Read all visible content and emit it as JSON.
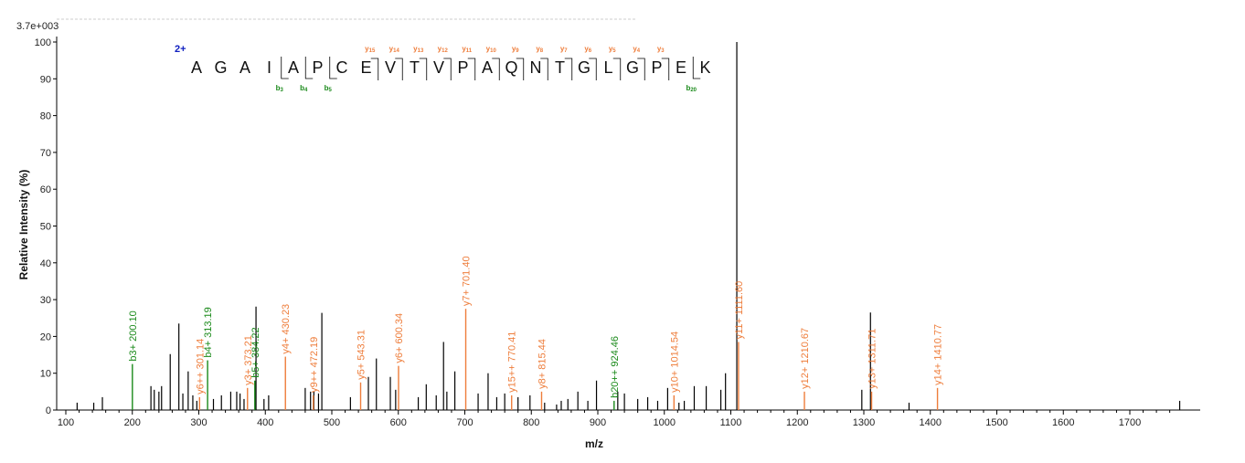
{
  "chart_data": {
    "type": "bar",
    "scale_label": "3.7e+003",
    "xlabel": "m/z",
    "ylabel": "Relative   Intensity (%)",
    "xlim": [
      90,
      1790
    ],
    "ylim": [
      0,
      100
    ],
    "x_ticks": [
      100,
      200,
      300,
      400,
      500,
      600,
      700,
      800,
      900,
      1000,
      1100,
      1200,
      1300,
      1400,
      1500,
      1600,
      1700
    ],
    "y_ticks": [
      0,
      10,
      20,
      30,
      40,
      50,
      60,
      70,
      80,
      90,
      100
    ],
    "colors": {
      "b_ion": "#1a8a1a",
      "y_ion": "#ee7d3b",
      "unassigned": "#000000",
      "charge": "#1020c0"
    },
    "annotated_peaks": [
      {
        "mz": 200.1,
        "intensity": 12.5,
        "label": "b3+ 200.10",
        "type": "b"
      },
      {
        "mz": 301.14,
        "intensity": 3.5,
        "label": "y6++ 301.14",
        "type": "y"
      },
      {
        "mz": 313.19,
        "intensity": 13.5,
        "label": "b4+ 313.19",
        "type": "b"
      },
      {
        "mz": 373.21,
        "intensity": 6.0,
        "label": "y3+ 373.21",
        "type": "y"
      },
      {
        "mz": 384.22,
        "intensity": 8.0,
        "label": "b5+ 384.22",
        "type": "b"
      },
      {
        "mz": 430.23,
        "intensity": 14.5,
        "label": "y4+ 430.23",
        "type": "y"
      },
      {
        "mz": 472.19,
        "intensity": 4.0,
        "label": "y9++ 472.19",
        "type": "y"
      },
      {
        "mz": 543.31,
        "intensity": 7.5,
        "label": "y5+ 543.31",
        "type": "y"
      },
      {
        "mz": 600.34,
        "intensity": 12.0,
        "label": "y6+ 600.34",
        "type": "y"
      },
      {
        "mz": 701.4,
        "intensity": 27.5,
        "label": "y7+ 701.40",
        "type": "y"
      },
      {
        "mz": 770.41,
        "intensity": 4.0,
        "label": "y15++ 770.41",
        "type": "y"
      },
      {
        "mz": 815.44,
        "intensity": 5.0,
        "label": "y8+ 815.44",
        "type": "y"
      },
      {
        "mz": 924.46,
        "intensity": 2.5,
        "label": "b20++ 924.46",
        "type": "b"
      },
      {
        "mz": 1014.54,
        "intensity": 4.0,
        "label": "y10+ 1014.54",
        "type": "y"
      },
      {
        "mz": 1111.6,
        "intensity": 18.5,
        "label": "y11+ 1111.60",
        "type": "y"
      },
      {
        "mz": 1210.67,
        "intensity": 5.0,
        "label": "y12+ 1210.67",
        "type": "y"
      },
      {
        "mz": 1311.71,
        "intensity": 5.0,
        "label": "y13+ 1311.71",
        "type": "y"
      },
      {
        "mz": 1410.77,
        "intensity": 6.0,
        "label": "y14+ 1410.77",
        "type": "y"
      }
    ],
    "unassigned_peaks": [
      [
        117,
        2
      ],
      [
        142,
        2
      ],
      [
        155,
        3.5
      ],
      [
        228,
        6.5
      ],
      [
        233,
        5.5
      ],
      [
        240,
        5
      ],
      [
        244,
        6.5
      ],
      [
        257,
        15.2
      ],
      [
        270,
        23.5
      ],
      [
        276,
        4.5
      ],
      [
        284,
        10.5
      ],
      [
        291,
        4
      ],
      [
        297,
        2.5
      ],
      [
        322,
        3
      ],
      [
        334,
        4
      ],
      [
        348,
        5
      ],
      [
        357,
        5
      ],
      [
        362,
        4.5
      ],
      [
        368,
        3
      ],
      [
        386,
        28.1
      ],
      [
        398,
        3
      ],
      [
        405,
        4
      ],
      [
        460,
        6
      ],
      [
        468,
        5
      ],
      [
        473,
        5
      ],
      [
        480,
        4.5
      ],
      [
        485,
        26.4
      ],
      [
        528,
        3.5
      ],
      [
        555,
        9
      ],
      [
        567,
        14
      ],
      [
        588,
        9
      ],
      [
        596,
        5.5
      ],
      [
        630,
        3.5
      ],
      [
        642,
        7
      ],
      [
        657,
        4
      ],
      [
        668,
        18.5
      ],
      [
        673,
        5
      ],
      [
        685,
        10.5
      ],
      [
        720,
        4.5
      ],
      [
        735,
        10
      ],
      [
        748,
        3.5
      ],
      [
        760,
        4.5
      ],
      [
        780,
        3.5
      ],
      [
        798,
        4
      ],
      [
        820,
        2
      ],
      [
        838,
        1.5
      ],
      [
        845,
        2.5
      ],
      [
        855,
        3
      ],
      [
        870,
        5
      ],
      [
        885,
        2.5
      ],
      [
        898,
        8
      ],
      [
        930,
        5
      ],
      [
        940,
        4.5
      ],
      [
        960,
        3
      ],
      [
        975,
        3.5
      ],
      [
        990,
        2.5
      ],
      [
        1005,
        6
      ],
      [
        1022,
        2
      ],
      [
        1030,
        2.5
      ],
      [
        1045,
        6.5
      ],
      [
        1063,
        6.5
      ],
      [
        1085,
        5.5
      ],
      [
        1092,
        10
      ],
      [
        1109,
        100
      ],
      [
        1297,
        5.5
      ],
      [
        1310,
        26.5
      ],
      [
        1368,
        2
      ],
      [
        1775,
        2.5
      ]
    ]
  },
  "sequence": {
    "charge": "2+",
    "residues": [
      "A",
      "G",
      "A",
      "I",
      "A",
      "P",
      "C",
      "E",
      "V",
      "T",
      "V",
      "P",
      "A",
      "Q",
      "N",
      "T",
      "G",
      "L",
      "G",
      "P",
      "E",
      "K"
    ],
    "y_markers": [
      {
        "after": 7,
        "base": "y",
        "sub": "15"
      },
      {
        "after": 8,
        "base": "y",
        "sub": "14"
      },
      {
        "after": 9,
        "base": "y",
        "sub": "13"
      },
      {
        "after": 10,
        "base": "y",
        "sub": "12"
      },
      {
        "after": 11,
        "base": "y",
        "sub": "11"
      },
      {
        "after": 12,
        "base": "y",
        "sub": "10"
      },
      {
        "after": 13,
        "base": "y",
        "sub": "9"
      },
      {
        "after": 14,
        "base": "y",
        "sub": "8"
      },
      {
        "after": 15,
        "base": "y",
        "sub": "7"
      },
      {
        "after": 16,
        "base": "y",
        "sub": "6"
      },
      {
        "after": 17,
        "base": "y",
        "sub": "5"
      },
      {
        "after": 18,
        "base": "y",
        "sub": "4"
      },
      {
        "after": 19,
        "base": "y",
        "sub": "3"
      }
    ],
    "b_markers": [
      {
        "after": 3,
        "base": "b",
        "sub": "3"
      },
      {
        "after": 4,
        "base": "b",
        "sub": "4"
      },
      {
        "after": 5,
        "base": "b",
        "sub": "5"
      },
      {
        "after": 20,
        "base": "b",
        "sub": "20"
      }
    ]
  }
}
